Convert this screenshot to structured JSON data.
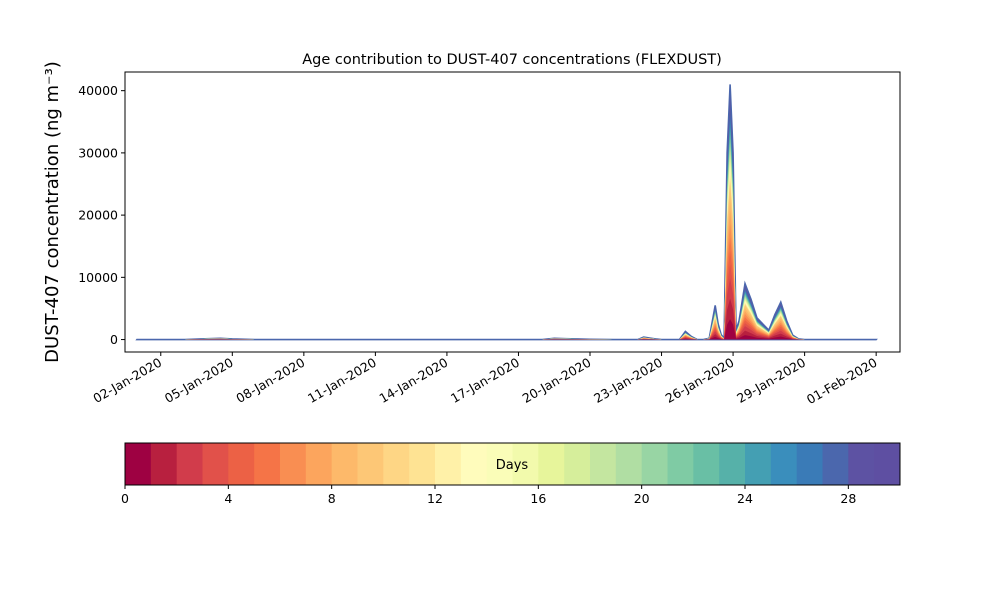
{
  "chart_data": {
    "type": "area",
    "title": "Age contribution to DUST-407 concentrations (FLEXDUST)",
    "ylabel": "DUST-407 concentration (ng m⁻³)",
    "xlabel": "",
    "xlim": [
      "2019-12-31T12:00",
      "2020-02-02T00:00"
    ],
    "ylim": [
      -2000,
      43000
    ],
    "yticks": [
      0,
      10000,
      20000,
      30000,
      40000
    ],
    "xticks": [
      "2020-01-02",
      "2020-01-05",
      "2020-01-08",
      "2020-01-11",
      "2020-01-14",
      "2020-01-17",
      "2020-01-20",
      "2020-01-23",
      "2020-01-26",
      "2020-01-29",
      "2020-02-01"
    ],
    "xtick_labels": [
      "02-Jan-2020",
      "05-Jan-2020",
      "08-Jan-2020",
      "11-Jan-2020",
      "14-Jan-2020",
      "17-Jan-2020",
      "20-Jan-2020",
      "23-Jan-2020",
      "26-Jan-2020",
      "29-Jan-2020",
      "01-Feb-2020"
    ],
    "grid": false,
    "series_stacked_by_age_days": true,
    "total": {
      "x": [
        "2020-01-01T00:00",
        "2020-01-03T00:00",
        "2020-01-04T00:00",
        "2020-01-04T12:00",
        "2020-01-05T00:00",
        "2020-01-06T00:00",
        "2020-01-18T00:00",
        "2020-01-18T12:00",
        "2020-01-19T00:00",
        "2020-01-20T00:00",
        "2020-01-21T00:00",
        "2020-01-22T00:00",
        "2020-01-22T06:00",
        "2020-01-22T12:00",
        "2020-01-22T18:00",
        "2020-01-23T00:00",
        "2020-01-23T18:00",
        "2020-01-24T00:00",
        "2020-01-24T06:00",
        "2020-01-24T12:00",
        "2020-01-24T18:00",
        "2020-01-25T00:00",
        "2020-01-25T06:00",
        "2020-01-25T09:00",
        "2020-01-25T12:00",
        "2020-01-25T15:00",
        "2020-01-25T18:00",
        "2020-01-25T21:00",
        "2020-01-26T00:00",
        "2020-01-26T03:00",
        "2020-01-26T06:00",
        "2020-01-26T09:00",
        "2020-01-26T12:00",
        "2020-01-26T18:00",
        "2020-01-27T00:00",
        "2020-01-27T06:00",
        "2020-01-27T12:00",
        "2020-01-27T18:00",
        "2020-01-28T00:00",
        "2020-01-28T06:00",
        "2020-01-28T12:00",
        "2020-01-28T18:00",
        "2020-01-29T00:00",
        "2020-01-30T00:00",
        "2020-02-01T00:00"
      ],
      "y": [
        0,
        0,
        150,
        200,
        100,
        0,
        0,
        200,
        150,
        50,
        0,
        0,
        400,
        250,
        100,
        0,
        0,
        1300,
        500,
        0,
        0,
        200,
        5500,
        2500,
        800,
        200,
        30000,
        41000,
        30000,
        1500,
        3000,
        6000,
        9000,
        6500,
        3500,
        2500,
        1500,
        4000,
        6000,
        3000,
        700,
        100,
        0,
        0,
        0
      ]
    },
    "colorbar": {
      "label": "Days",
      "vmin": 0,
      "vmax": 30,
      "ticks": [
        0,
        4,
        8,
        12,
        16,
        20,
        24,
        28
      ],
      "colors": [
        "#9e0142",
        "#b8203f",
        "#d13c4b",
        "#e1514a",
        "#ec6145",
        "#f57447",
        "#f98e52",
        "#fca55d",
        "#fdb96a",
        "#fdc776",
        "#fed685",
        "#fee393",
        "#fff1a8",
        "#fffcbc",
        "#fafdb8",
        "#f2faac",
        "#e7f59b",
        "#d6ee9b",
        "#c4e6a0",
        "#b0dea3",
        "#98d5a4",
        "#7fcba4",
        "#69bfa5",
        "#56b1a9",
        "#449fb3",
        "#3a8ebc",
        "#3a7bb7",
        "#4b67ad",
        "#5d52a3",
        "#5e4fa2"
      ]
    }
  }
}
